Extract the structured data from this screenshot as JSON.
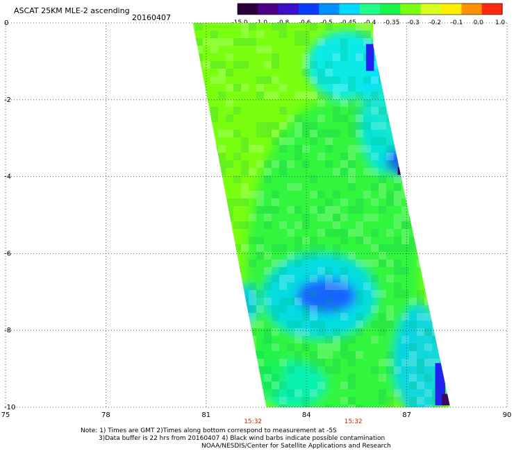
{
  "header": {
    "title": "ASCAT 25KM MLE-2 ascending",
    "date": "20160407"
  },
  "colorbar": {
    "labels": [
      "-15.0",
      "-1.0",
      "-0.8",
      "-0.6",
      "-0.5",
      "-0.45",
      "-0.4",
      "-0.35",
      "-0.3",
      "-0.2",
      "-0.1",
      "0.0",
      "1.0"
    ],
    "colors": [
      "#2a0038",
      "#4b0086",
      "#3a10c8",
      "#0a3cff",
      "#0090ff",
      "#00d8ff",
      "#22ff88",
      "#1cf24c",
      "#7aff10",
      "#d9ff20",
      "#ffee00",
      "#ff9000",
      "#ff2a10"
    ]
  },
  "map": {
    "x_ticks": [
      "75",
      "78",
      "81",
      "84",
      "87",
      "90"
    ],
    "y_ticks": [
      "0",
      "-2",
      "-4",
      "-6",
      "-8",
      "-10"
    ],
    "lon_range": [
      75,
      90
    ],
    "lat_range": [
      0,
      -10
    ],
    "time_labels": [
      {
        "text": "15:32",
        "lon": 82.4
      },
      {
        "text": "15:32",
        "lon": 85.4
      }
    ],
    "swath": {
      "left_edge": [
        [
          0,
          80.6
        ],
        [
          -10,
          82.8
        ]
      ],
      "right_edge": [
        [
          -0.6,
          86.0
        ],
        [
          -10,
          88.3
        ]
      ],
      "background_color": "#7aff10"
    },
    "patches": [
      {
        "name": "swath-green",
        "lon": 84.8,
        "lat": -6.5,
        "rlon": 2.6,
        "rlat": 4.5,
        "color": "#1cf24c",
        "opacity": 0.75
      },
      {
        "name": "cyan-north-east",
        "lon": 85.2,
        "lat": -1.1,
        "rlon": 1.2,
        "rlat": 0.9,
        "color": "#00e8ff",
        "opacity": 0.9
      },
      {
        "name": "cyan-band-east",
        "lon": 86.3,
        "lat": -2.5,
        "rlon": 0.7,
        "rlat": 1.4,
        "color": "#00e0ff",
        "opacity": 0.8
      },
      {
        "name": "blue-patch-north",
        "lon": 86.9,
        "lat": -3.6,
        "rlon": 0.5,
        "rlat": 0.35,
        "color": "#1a4cff",
        "opacity": 0.95
      },
      {
        "name": "cyan-central",
        "lon": 84.4,
        "lat": -7.1,
        "rlon": 1.7,
        "rlat": 1.1,
        "color": "#00d8ff",
        "opacity": 0.85
      },
      {
        "name": "blue-central",
        "lon": 84.6,
        "lat": -7.1,
        "rlon": 0.9,
        "rlat": 0.45,
        "color": "#1a60ff",
        "opacity": 0.95
      },
      {
        "name": "cyan-south-east",
        "lon": 87.4,
        "lat": -8.8,
        "rlon": 0.8,
        "rlat": 1.5,
        "color": "#00d0ff",
        "opacity": 0.85
      },
      {
        "name": "cyan-west-edge",
        "lon": 82.2,
        "lat": -7.3,
        "rlon": 0.35,
        "rlat": 0.5,
        "color": "#00c8ff",
        "opacity": 0.9
      },
      {
        "name": "cyan-south-west",
        "lon": 83.5,
        "lat": -9.4,
        "rlon": 1.1,
        "rlat": 0.6,
        "color": "#00f0e0",
        "opacity": 0.7
      },
      {
        "name": "green-west-south",
        "lon": 82.8,
        "lat": -8.9,
        "rlon": 0.6,
        "rlat": 0.9,
        "color": "#1cf24c",
        "opacity": 0.8
      }
    ],
    "edge_blocks": [
      {
        "name": "edge-blue-north",
        "lon": 85.9,
        "lat": -0.9,
        "rlon": 0.12,
        "rlat": 0.35,
        "color": "#2222ee"
      },
      {
        "name": "edge-dark-north",
        "lon": 86.85,
        "lat": -3.85,
        "rlon": 0.12,
        "rlat": 0.1,
        "color": "#3a0860"
      },
      {
        "name": "edge-blue-west",
        "lon": 82.25,
        "lat": -8.1,
        "rlon": 0.08,
        "rlat": 0.1,
        "color": "#2222ee"
      },
      {
        "name": "edge-blue-south",
        "lon": 88.0,
        "lat": -9.4,
        "rlon": 0.15,
        "rlat": 0.55,
        "color": "#2222ee"
      },
      {
        "name": "edge-dark-south",
        "lon": 88.2,
        "lat": -9.8,
        "rlon": 0.15,
        "rlat": 0.15,
        "color": "#3a0860"
      }
    ]
  },
  "notes": {
    "line1": "Note: 1) Times are GMT 2)Times along bottom correspond to measurement at -5S",
    "line2": "3)Data buffer is 22 hrs from 20160407 4) Black wind barbs indicate possible contamination",
    "line3": "NOAA/NESDIS/Center for Satellite Applications and Research"
  }
}
